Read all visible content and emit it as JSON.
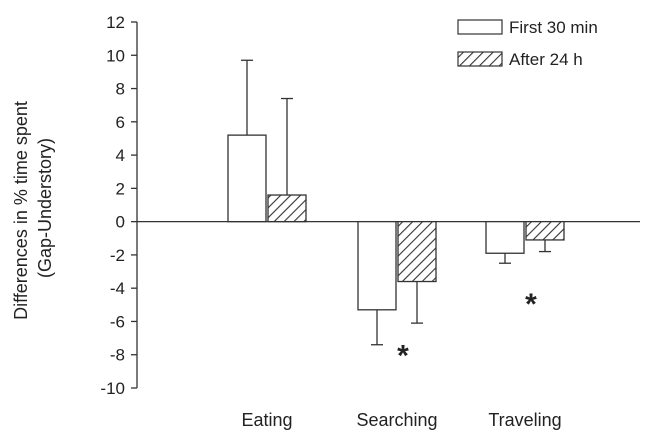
{
  "chart_data": {
    "type": "bar",
    "categories": [
      "Eating",
      "Searching",
      "Traveling"
    ],
    "series": [
      {
        "name": "First 30 min",
        "values": [
          5.2,
          -5.3,
          -1.9
        ],
        "errors": [
          4.5,
          2.1,
          0.6
        ],
        "pattern": "open"
      },
      {
        "name": "After 24 h",
        "values": [
          1.6,
          -3.6,
          -1.1
        ],
        "errors": [
          5.8,
          2.5,
          0.7
        ],
        "pattern": "hatched"
      }
    ],
    "ylabel_line1": "Differences in % time spent",
    "ylabel_line2": "(Gap-Understory)",
    "ylim": [
      -10,
      12
    ],
    "yticks": [
      12,
      10,
      8,
      6,
      4,
      2,
      0,
      -2,
      -4,
      -6,
      -8,
      -10
    ],
    "legend_position": "top-right",
    "annotations": [
      {
        "text": "*",
        "category": "Searching",
        "y": -7.8
      },
      {
        "text": "*",
        "category": "Traveling",
        "y": -4.7
      }
    ]
  }
}
